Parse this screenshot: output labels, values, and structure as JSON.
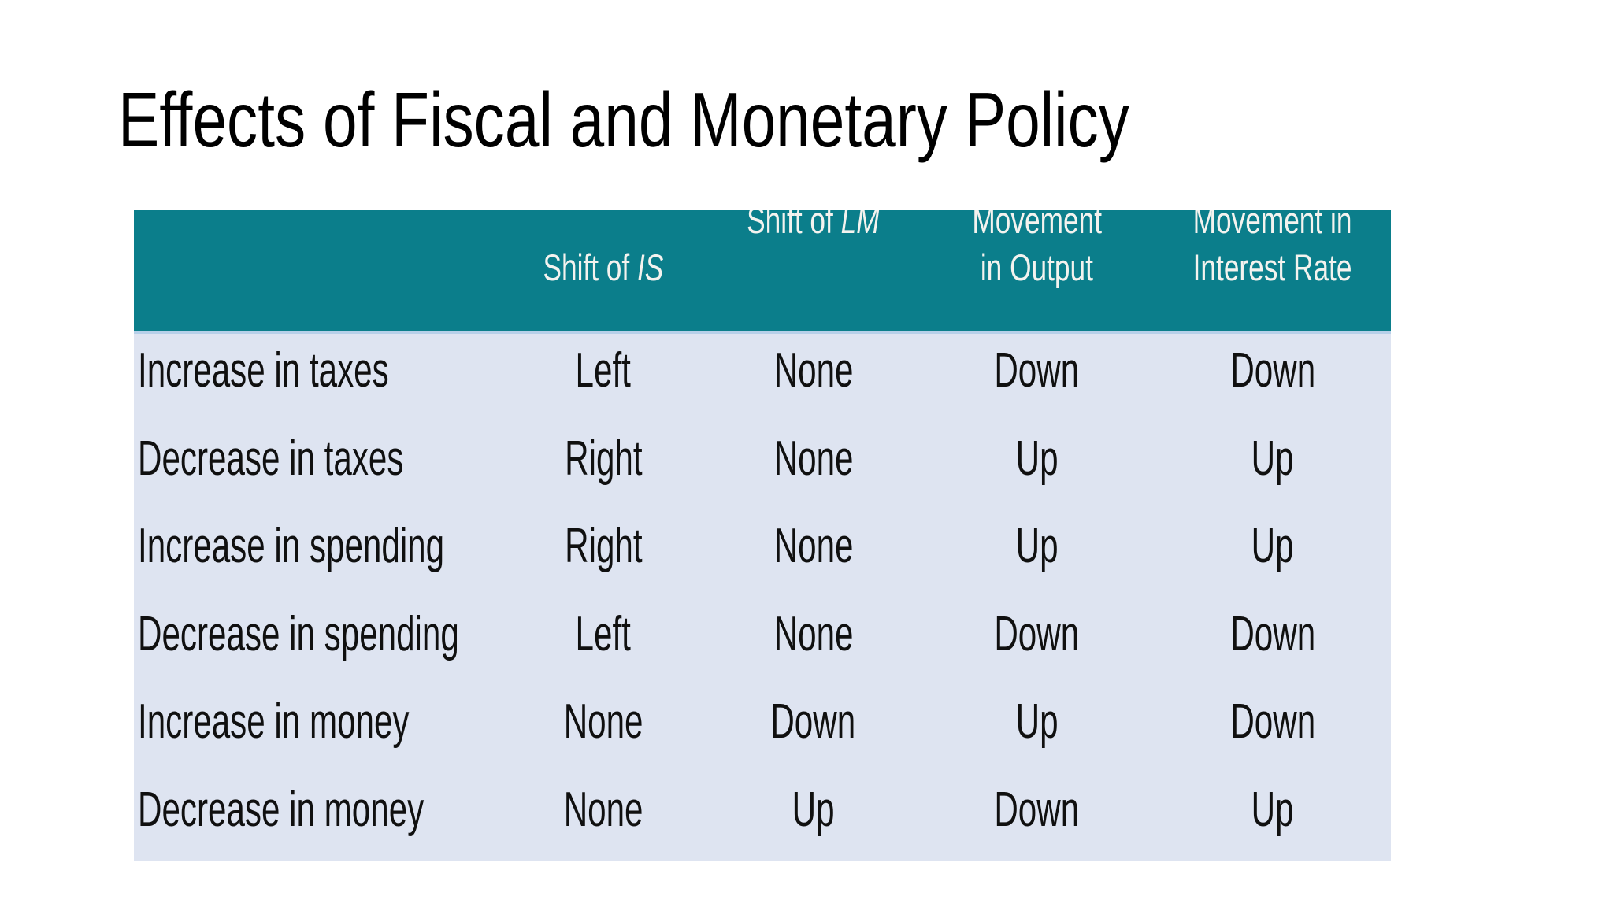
{
  "slide": {
    "title": "Effects of Fiscal and Monetary Policy"
  },
  "table": {
    "header": {
      "row_label_column": "",
      "shift_is": {
        "prefix": "Shift of ",
        "em": "IS"
      },
      "shift_lm": {
        "prefix": "Shift of ",
        "em": "LM"
      },
      "movement_output": {
        "line1": "Movement",
        "line2": "in Output"
      },
      "movement_interest": {
        "line1": "Movement in",
        "line2": "Interest Rate"
      }
    },
    "rows": [
      {
        "label": "Increase in taxes",
        "shift_is": "Left",
        "shift_lm": "None",
        "output": "Down",
        "interest": "Down"
      },
      {
        "label": "Decrease in taxes",
        "shift_is": "Right",
        "shift_lm": "None",
        "output": "Up",
        "interest": "Up"
      },
      {
        "label": "Increase in spending",
        "shift_is": "Right",
        "shift_lm": "None",
        "output": "Up",
        "interest": "Up"
      },
      {
        "label": "Decrease in spending",
        "shift_is": "Left",
        "shift_lm": "None",
        "output": "Down",
        "interest": "Down"
      },
      {
        "label": "Increase in money",
        "shift_is": "None",
        "shift_lm": "Down",
        "output": "Up",
        "interest": "Down"
      },
      {
        "label": "Decrease in money",
        "shift_is": "None",
        "shift_lm": "Up",
        "output": "Down",
        "interest": "Up"
      }
    ],
    "colors": {
      "header_bg": "#0b7e8b",
      "body_bg": "#dee4f1",
      "header_divider": "#b7d0e9",
      "header_text": "#f4f3ef",
      "body_text": "#101010",
      "title_text": "#000000"
    }
  }
}
